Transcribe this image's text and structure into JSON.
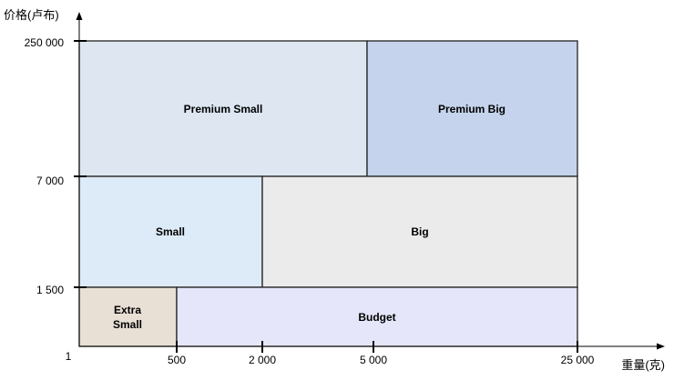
{
  "axes": {
    "x_title": "重量(克)",
    "y_title": "价格(卢布)",
    "origin_label": "1",
    "x_ticks": [
      "500",
      "2 000",
      "5 000",
      "25 000"
    ],
    "y_ticks": [
      "250 000",
      "7 000",
      "1 500"
    ]
  },
  "regions": [
    {
      "id": "premium-small",
      "lines": [
        "Premium Small"
      ],
      "color": "#dde6f1"
    },
    {
      "id": "premium-big",
      "lines": [
        "Premium Big"
      ],
      "color": "#c5d4ec"
    },
    {
      "id": "small",
      "lines": [
        "Small"
      ],
      "color": "#ddeaf7"
    },
    {
      "id": "big",
      "lines": [
        "Big"
      ],
      "color": "#ebebeb"
    },
    {
      "id": "extra-small",
      "lines": [
        "Extra",
        "Small"
      ],
      "color": "#e8dfd5"
    },
    {
      "id": "budget",
      "lines": [
        "Budget"
      ],
      "color": "#e5e6fa"
    }
  ]
}
